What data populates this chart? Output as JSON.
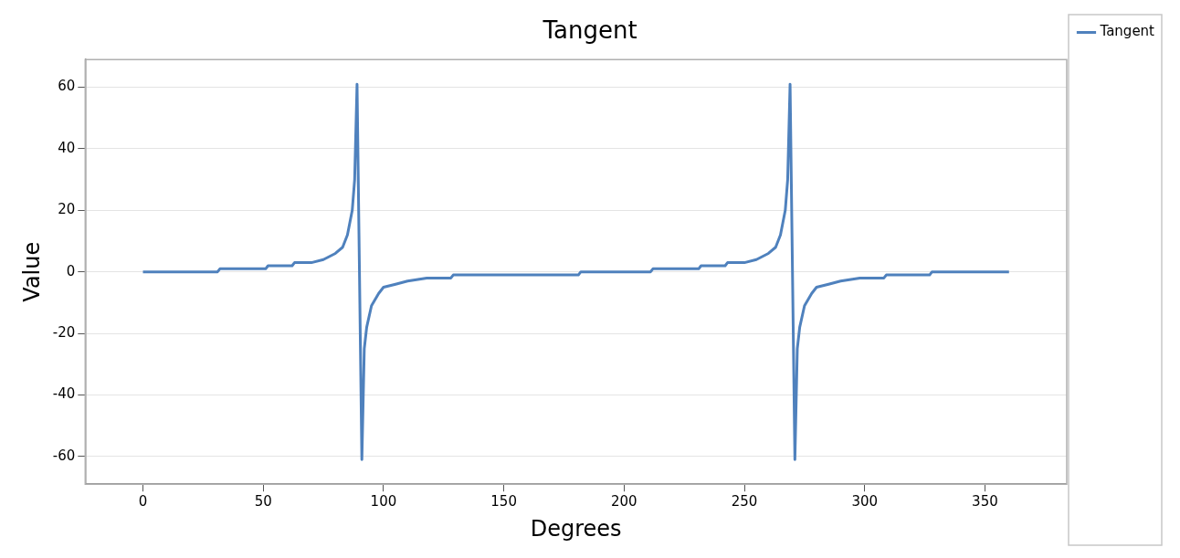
{
  "chart_data": {
    "type": "line",
    "title": "Tangent",
    "xlabel": "Degrees",
    "ylabel": "Value",
    "series": [
      {
        "name": "Tangent",
        "color": "#4f81bd",
        "x": [
          0,
          31,
          32,
          51,
          52,
          62,
          63,
          70,
          75,
          80,
          83,
          85,
          87,
          88,
          89,
          91,
          92,
          93,
          95,
          98,
          100,
          105,
          110,
          118,
          128,
          129,
          148,
          181,
          182,
          211,
          212,
          231,
          232,
          242,
          243,
          250,
          255,
          260,
          263,
          265,
          267,
          268,
          269,
          271,
          272,
          273,
          275,
          278,
          280,
          285,
          290,
          298,
          308,
          309,
          327,
          328,
          360
        ],
        "values": [
          0,
          0,
          1,
          1,
          2,
          2,
          3,
          3,
          4,
          6,
          8,
          12,
          20,
          30,
          61,
          -61,
          -25,
          -18,
          -11,
          -7,
          -5,
          -4,
          -3,
          -2,
          -2,
          -1,
          -1,
          -1,
          0,
          0,
          1,
          1,
          2,
          2,
          3,
          3,
          4,
          6,
          8,
          12,
          20,
          30,
          61,
          -61,
          -25,
          -18,
          -11,
          -7,
          -5,
          -4,
          -3,
          -2,
          -2,
          -1,
          -1,
          0,
          0
        ]
      }
    ],
    "xlim": [
      -24,
      384
    ],
    "xticks": [
      0,
      50,
      100,
      150,
      200,
      250,
      300,
      350
    ],
    "ylim": [
      -69,
      69
    ],
    "yticks": [
      -60,
      -40,
      -20,
      0,
      20,
      40,
      60
    ],
    "grid": "y",
    "legend": "top right",
    "marker": "none",
    "line_style": "solid"
  }
}
